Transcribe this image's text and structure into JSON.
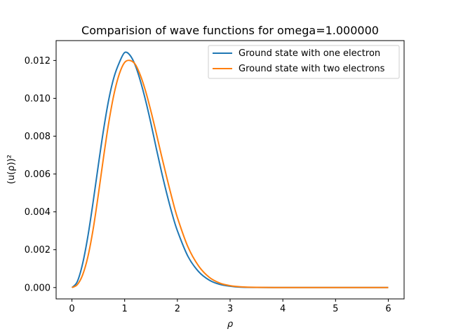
{
  "chart_data": {
    "type": "line",
    "title": "Comparision of wave functions for omega=1.000000",
    "xlabel": "ρ",
    "ylabel": "(u(ρ))²",
    "xlim": [
      -0.3,
      6.3
    ],
    "ylim": [
      -0.0006,
      0.01305
    ],
    "xticks": [
      0,
      1,
      2,
      3,
      4,
      5,
      6
    ],
    "xtick_labels": [
      "0",
      "1",
      "2",
      "3",
      "4",
      "5",
      "6"
    ],
    "yticks": [
      0.0,
      0.002,
      0.004,
      0.006,
      0.008,
      0.01,
      0.012
    ],
    "ytick_labels": [
      "0.000",
      "0.002",
      "0.004",
      "0.006",
      "0.008",
      "0.010",
      "0.012"
    ],
    "grid": false,
    "legend_position": "top-right",
    "series": [
      {
        "name": "Ground state with one electron",
        "color": "#1f77b4",
        "x": [
          0,
          0.1,
          0.2,
          0.3,
          0.4,
          0.5,
          0.6,
          0.7,
          0.8,
          0.9,
          1.0,
          1.1,
          1.2,
          1.3,
          1.4,
          1.5,
          1.6,
          1.7,
          1.8,
          1.9,
          2.0,
          2.2,
          2.4,
          2.6,
          2.8,
          3.0,
          3.2,
          3.5,
          4.0,
          4.5,
          5.0,
          5.5,
          6.0
        ],
        "y": [
          0.0,
          0.000305,
          0.00123,
          0.00267,
          0.00449,
          0.00646,
          0.00835,
          0.00996,
          0.01114,
          0.0119,
          0.01242,
          0.01228,
          0.01175,
          0.0109,
          0.00985,
          0.00865,
          0.00735,
          0.0061,
          0.00495,
          0.0039,
          0.003,
          0.00165,
          0.00085,
          0.0004,
          0.00017,
          7e-05,
          2e-05,
          5e-06,
          0.0,
          0.0,
          0.0,
          0.0,
          0.0
        ]
      },
      {
        "name": "Ground state with two electrons",
        "color": "#ff7f0e",
        "x": [
          0,
          0.1,
          0.2,
          0.3,
          0.4,
          0.5,
          0.6,
          0.7,
          0.8,
          0.9,
          1.0,
          1.1,
          1.2,
          1.3,
          1.4,
          1.5,
          1.6,
          1.7,
          1.8,
          1.9,
          2.0,
          2.2,
          2.4,
          2.6,
          2.8,
          3.0,
          3.2,
          3.5,
          4.0,
          4.5,
          5.0,
          5.5,
          6.0
        ],
        "y": [
          0.0,
          0.00015,
          0.00065,
          0.0016,
          0.00305,
          0.0049,
          0.0069,
          0.00875,
          0.01025,
          0.0113,
          0.0119,
          0.012,
          0.0118,
          0.0112,
          0.01035,
          0.0093,
          0.00815,
          0.00695,
          0.0058,
          0.0047,
          0.0037,
          0.00215,
          0.00115,
          0.00055,
          0.00024,
          0.0001,
          4e-05,
          1e-05,
          0.0,
          0.0,
          0.0,
          0.0,
          0.0
        ]
      }
    ]
  }
}
